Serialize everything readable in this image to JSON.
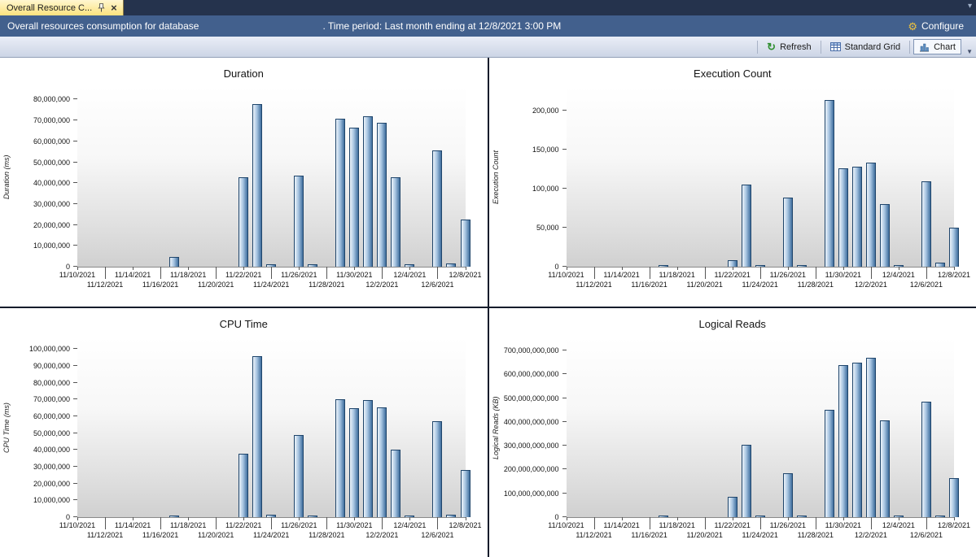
{
  "tab": {
    "title": "Overall Resource C...",
    "close_glyph": "×"
  },
  "header": {
    "text_before_db": "Overall resources consumption for database",
    "text_after_db": ". Time period: Last month ending at 12/8/2021 3:00 PM",
    "configure_label": "Configure",
    "configure_glyph": "⚙"
  },
  "toolbar": {
    "refresh_label": "Refresh",
    "refresh_glyph": "↻",
    "standard_grid_label": "Standard Grid",
    "chart_label": "Chart",
    "active_view": "Chart"
  },
  "colors": {
    "header_bar": "#42608d",
    "tab_active": "#fbe27e",
    "toolbar_bg": "#d6ddeb",
    "bar_fill_light": "#ecf3fa",
    "bar_fill_dark": "#3f6e9e",
    "bar_border": "#1f456b"
  },
  "x_axis": {
    "start": "11/10/2021",
    "end": "12/8/2021",
    "ticks": [
      {
        "date": "11/10/2021",
        "row": 1
      },
      {
        "date": "11/12/2021",
        "row": 2
      },
      {
        "date": "11/14/2021",
        "row": 1
      },
      {
        "date": "11/16/2021",
        "row": 2
      },
      {
        "date": "11/18/2021",
        "row": 1
      },
      {
        "date": "11/20/2021",
        "row": 2
      },
      {
        "date": "11/22/2021",
        "row": 1
      },
      {
        "date": "11/24/2021",
        "row": 2
      },
      {
        "date": "11/26/2021",
        "row": 1
      },
      {
        "date": "11/28/2021",
        "row": 2
      },
      {
        "date": "11/30/2021",
        "row": 1
      },
      {
        "date": "12/2/2021",
        "row": 2
      },
      {
        "date": "12/4/2021",
        "row": 1
      },
      {
        "date": "12/6/2021",
        "row": 2
      },
      {
        "date": "12/8/2021",
        "row": 1
      }
    ]
  },
  "chart_data": [
    {
      "type": "bar",
      "title": "Duration",
      "ylabel": "Duration (ms)",
      "ylim": [
        0,
        86000000
      ],
      "yticks": [
        0,
        10000000,
        20000000,
        30000000,
        40000000,
        50000000,
        60000000,
        70000000,
        80000000
      ],
      "grid": false,
      "points": [
        {
          "date": "11/17/2021",
          "value": 4800000
        },
        {
          "date": "11/22/2021",
          "value": 43000000
        },
        {
          "date": "11/23/2021",
          "value": 78000000
        },
        {
          "date": "11/24/2021",
          "value": 1200000
        },
        {
          "date": "11/26/2021",
          "value": 43500000
        },
        {
          "date": "11/27/2021",
          "value": 1000000
        },
        {
          "date": "11/29/2021",
          "value": 71000000
        },
        {
          "date": "11/30/2021",
          "value": 66500000
        },
        {
          "date": "12/1/2021",
          "value": 72000000
        },
        {
          "date": "12/2/2021",
          "value": 69000000
        },
        {
          "date": "12/3/2021",
          "value": 43000000
        },
        {
          "date": "12/4/2021",
          "value": 1200000
        },
        {
          "date": "12/6/2021",
          "value": 55500000
        },
        {
          "date": "12/7/2021",
          "value": 1500000
        },
        {
          "date": "12/8/2021",
          "value": 22500000
        }
      ]
    },
    {
      "type": "bar",
      "title": "Execution Count",
      "ylabel": "Execution Count",
      "ylim": [
        0,
        230000
      ],
      "yticks": [
        0,
        50000,
        100000,
        150000,
        200000
      ],
      "grid": false,
      "points": [
        {
          "date": "11/17/2021",
          "value": 2000
        },
        {
          "date": "11/22/2021",
          "value": 8000
        },
        {
          "date": "11/23/2021",
          "value": 105000
        },
        {
          "date": "11/24/2021",
          "value": 2000
        },
        {
          "date": "11/26/2021",
          "value": 88000
        },
        {
          "date": "11/27/2021",
          "value": 1500
        },
        {
          "date": "11/29/2021",
          "value": 213000
        },
        {
          "date": "11/30/2021",
          "value": 126000
        },
        {
          "date": "12/1/2021",
          "value": 128000
        },
        {
          "date": "12/2/2021",
          "value": 133000
        },
        {
          "date": "12/3/2021",
          "value": 80000
        },
        {
          "date": "12/4/2021",
          "value": 1500
        },
        {
          "date": "12/6/2021",
          "value": 109000
        },
        {
          "date": "12/7/2021",
          "value": 5000
        },
        {
          "date": "12/8/2021",
          "value": 50000
        }
      ]
    },
    {
      "type": "bar",
      "title": "CPU Time",
      "ylabel": "CPU Time (ms)",
      "ylim": [
        0,
        107000000
      ],
      "yticks": [
        0,
        10000000,
        20000000,
        30000000,
        40000000,
        50000000,
        60000000,
        70000000,
        80000000,
        90000000,
        100000000
      ],
      "grid": false,
      "points": [
        {
          "date": "11/17/2021",
          "value": 1200000
        },
        {
          "date": "11/22/2021",
          "value": 38000000
        },
        {
          "date": "11/23/2021",
          "value": 96000000
        },
        {
          "date": "11/24/2021",
          "value": 1500000
        },
        {
          "date": "11/26/2021",
          "value": 49000000
        },
        {
          "date": "11/27/2021",
          "value": 1000000
        },
        {
          "date": "11/29/2021",
          "value": 70000000
        },
        {
          "date": "11/30/2021",
          "value": 65000000
        },
        {
          "date": "12/1/2021",
          "value": 69500000
        },
        {
          "date": "12/2/2021",
          "value": 65500000
        },
        {
          "date": "12/3/2021",
          "value": 40000000
        },
        {
          "date": "12/4/2021",
          "value": 1200000
        },
        {
          "date": "12/6/2021",
          "value": 57000000
        },
        {
          "date": "12/7/2021",
          "value": 1500000
        },
        {
          "date": "12/8/2021",
          "value": 28000000
        }
      ]
    },
    {
      "type": "bar",
      "title": "Logical Reads",
      "ylabel": "Logical Reads (KB)",
      "ylim": [
        0,
        755000000000
      ],
      "yticks": [
        0,
        100000000000,
        200000000000,
        300000000000,
        400000000000,
        500000000000,
        600000000000,
        700000000000
      ],
      "grid": false,
      "points": [
        {
          "date": "11/17/2021",
          "value": 3000000000
        },
        {
          "date": "11/22/2021",
          "value": 85000000000
        },
        {
          "date": "11/23/2021",
          "value": 305000000000
        },
        {
          "date": "11/24/2021",
          "value": 8000000000
        },
        {
          "date": "11/26/2021",
          "value": 185000000000
        },
        {
          "date": "11/27/2021",
          "value": 3000000000
        },
        {
          "date": "11/29/2021",
          "value": 450000000000
        },
        {
          "date": "11/30/2021",
          "value": 640000000000
        },
        {
          "date": "12/1/2021",
          "value": 650000000000
        },
        {
          "date": "12/2/2021",
          "value": 670000000000
        },
        {
          "date": "12/3/2021",
          "value": 405000000000
        },
        {
          "date": "12/4/2021",
          "value": 5000000000
        },
        {
          "date": "12/6/2021",
          "value": 485000000000
        },
        {
          "date": "12/7/2021",
          "value": 8000000000
        },
        {
          "date": "12/8/2021",
          "value": 165000000000
        }
      ]
    }
  ]
}
